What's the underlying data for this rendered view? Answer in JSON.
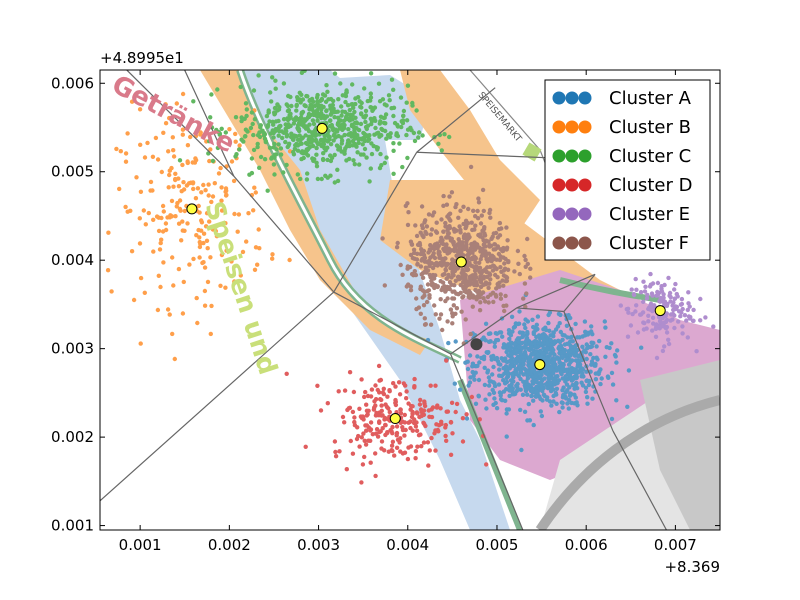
{
  "chart_data": {
    "type": "scatter",
    "title": "",
    "xlabel": "",
    "ylabel": "",
    "x_offset_label": "+8.369",
    "y_offset_label": "+4.8995e1",
    "xlim": [
      0.00055,
      0.0075
    ],
    "ylim": [
      0.00095,
      0.00615
    ],
    "x_ticks": [
      0.001,
      0.002,
      0.003,
      0.004,
      0.005,
      0.006,
      0.007
    ],
    "x_tick_labels": [
      "0.001",
      "0.002",
      "0.003",
      "0.004",
      "0.005",
      "0.006",
      "0.007"
    ],
    "y_ticks": [
      0.001,
      0.002,
      0.003,
      0.004,
      0.005,
      0.006
    ],
    "y_tick_labels": [
      "0.001",
      "0.002",
      "0.003",
      "0.004",
      "0.005",
      "0.006"
    ],
    "legend_position": "top-right",
    "map_labels": [
      "Speisen und Getränke",
      "SPEISEMARKT"
    ],
    "series": [
      {
        "name": "Cluster A",
        "color": "#1f77b4",
        "centroid": [
          0.00548,
          0.00282
        ],
        "spread": [
          0.0006,
          0.0004
        ],
        "count": 900
      },
      {
        "name": "Cluster B",
        "color": "#ff7f0e",
        "centroid": [
          0.00158,
          0.00458
        ],
        "spread": [
          0.0007,
          0.0009
        ],
        "count": 230
      },
      {
        "name": "Cluster C",
        "color": "#2ca02c",
        "centroid": [
          0.00304,
          0.00549
        ],
        "spread": [
          0.0008,
          0.0004
        ],
        "count": 650
      },
      {
        "name": "Cluster D",
        "color": "#d62728",
        "centroid": [
          0.00386,
          0.00221
        ],
        "spread": [
          0.0006,
          0.0004
        ],
        "count": 260
      },
      {
        "name": "Cluster E",
        "color": "#9467bd",
        "centroid": [
          0.00683,
          0.00343
        ],
        "spread": [
          0.0003,
          0.0003
        ],
        "count": 160
      },
      {
        "name": "Cluster F",
        "color": "#8c564b",
        "centroid": [
          0.0046,
          0.00398
        ],
        "spread": [
          0.0005,
          0.0005
        ],
        "count": 650
      }
    ],
    "extra_marker": {
      "color": "#444444",
      "point": [
        0.00477,
        0.00305
      ]
    },
    "voronoi_edges": [
      [
        [
          0.0002,
          0.0068
        ],
        [
          0.00205,
          0.00495
        ]
      ],
      [
        [
          0.00205,
          0.00495
        ],
        [
          0.00097,
          0.0073
        ]
      ],
      [
        [
          0.00205,
          0.00495
        ],
        [
          0.00317,
          0.00364
        ]
      ],
      [
        [
          0.00317,
          0.00364
        ],
        [
          0.00055,
          0.00128
        ]
      ],
      [
        [
          0.00317,
          0.00364
        ],
        [
          0.00448,
          0.00294
        ]
      ],
      [
        [
          0.00448,
          0.00294
        ],
        [
          0.00529,
          0.00095
        ]
      ],
      [
        [
          0.00317,
          0.00364
        ],
        [
          0.0041,
          0.00522
        ]
      ],
      [
        [
          0.0041,
          0.00522
        ],
        [
          0.00498,
          0.00595
        ]
      ],
      [
        [
          0.0041,
          0.00522
        ],
        [
          0.00575,
          0.00515
        ]
      ],
      [
        [
          0.00448,
          0.00294
        ],
        [
          0.00522,
          0.00346
        ]
      ],
      [
        [
          0.00522,
          0.00346
        ],
        [
          0.0061,
          0.00384
        ]
      ],
      [
        [
          0.00522,
          0.00346
        ],
        [
          0.00575,
          0.00342
        ]
      ],
      [
        [
          0.00575,
          0.00342
        ],
        [
          0.0063,
          0.00207
        ]
      ],
      [
        [
          0.0063,
          0.00207
        ],
        [
          0.0069,
          0.00095
        ]
      ],
      [
        [
          0.00575,
          0.00342
        ],
        [
          0.0061,
          0.00384
        ]
      ]
    ]
  }
}
